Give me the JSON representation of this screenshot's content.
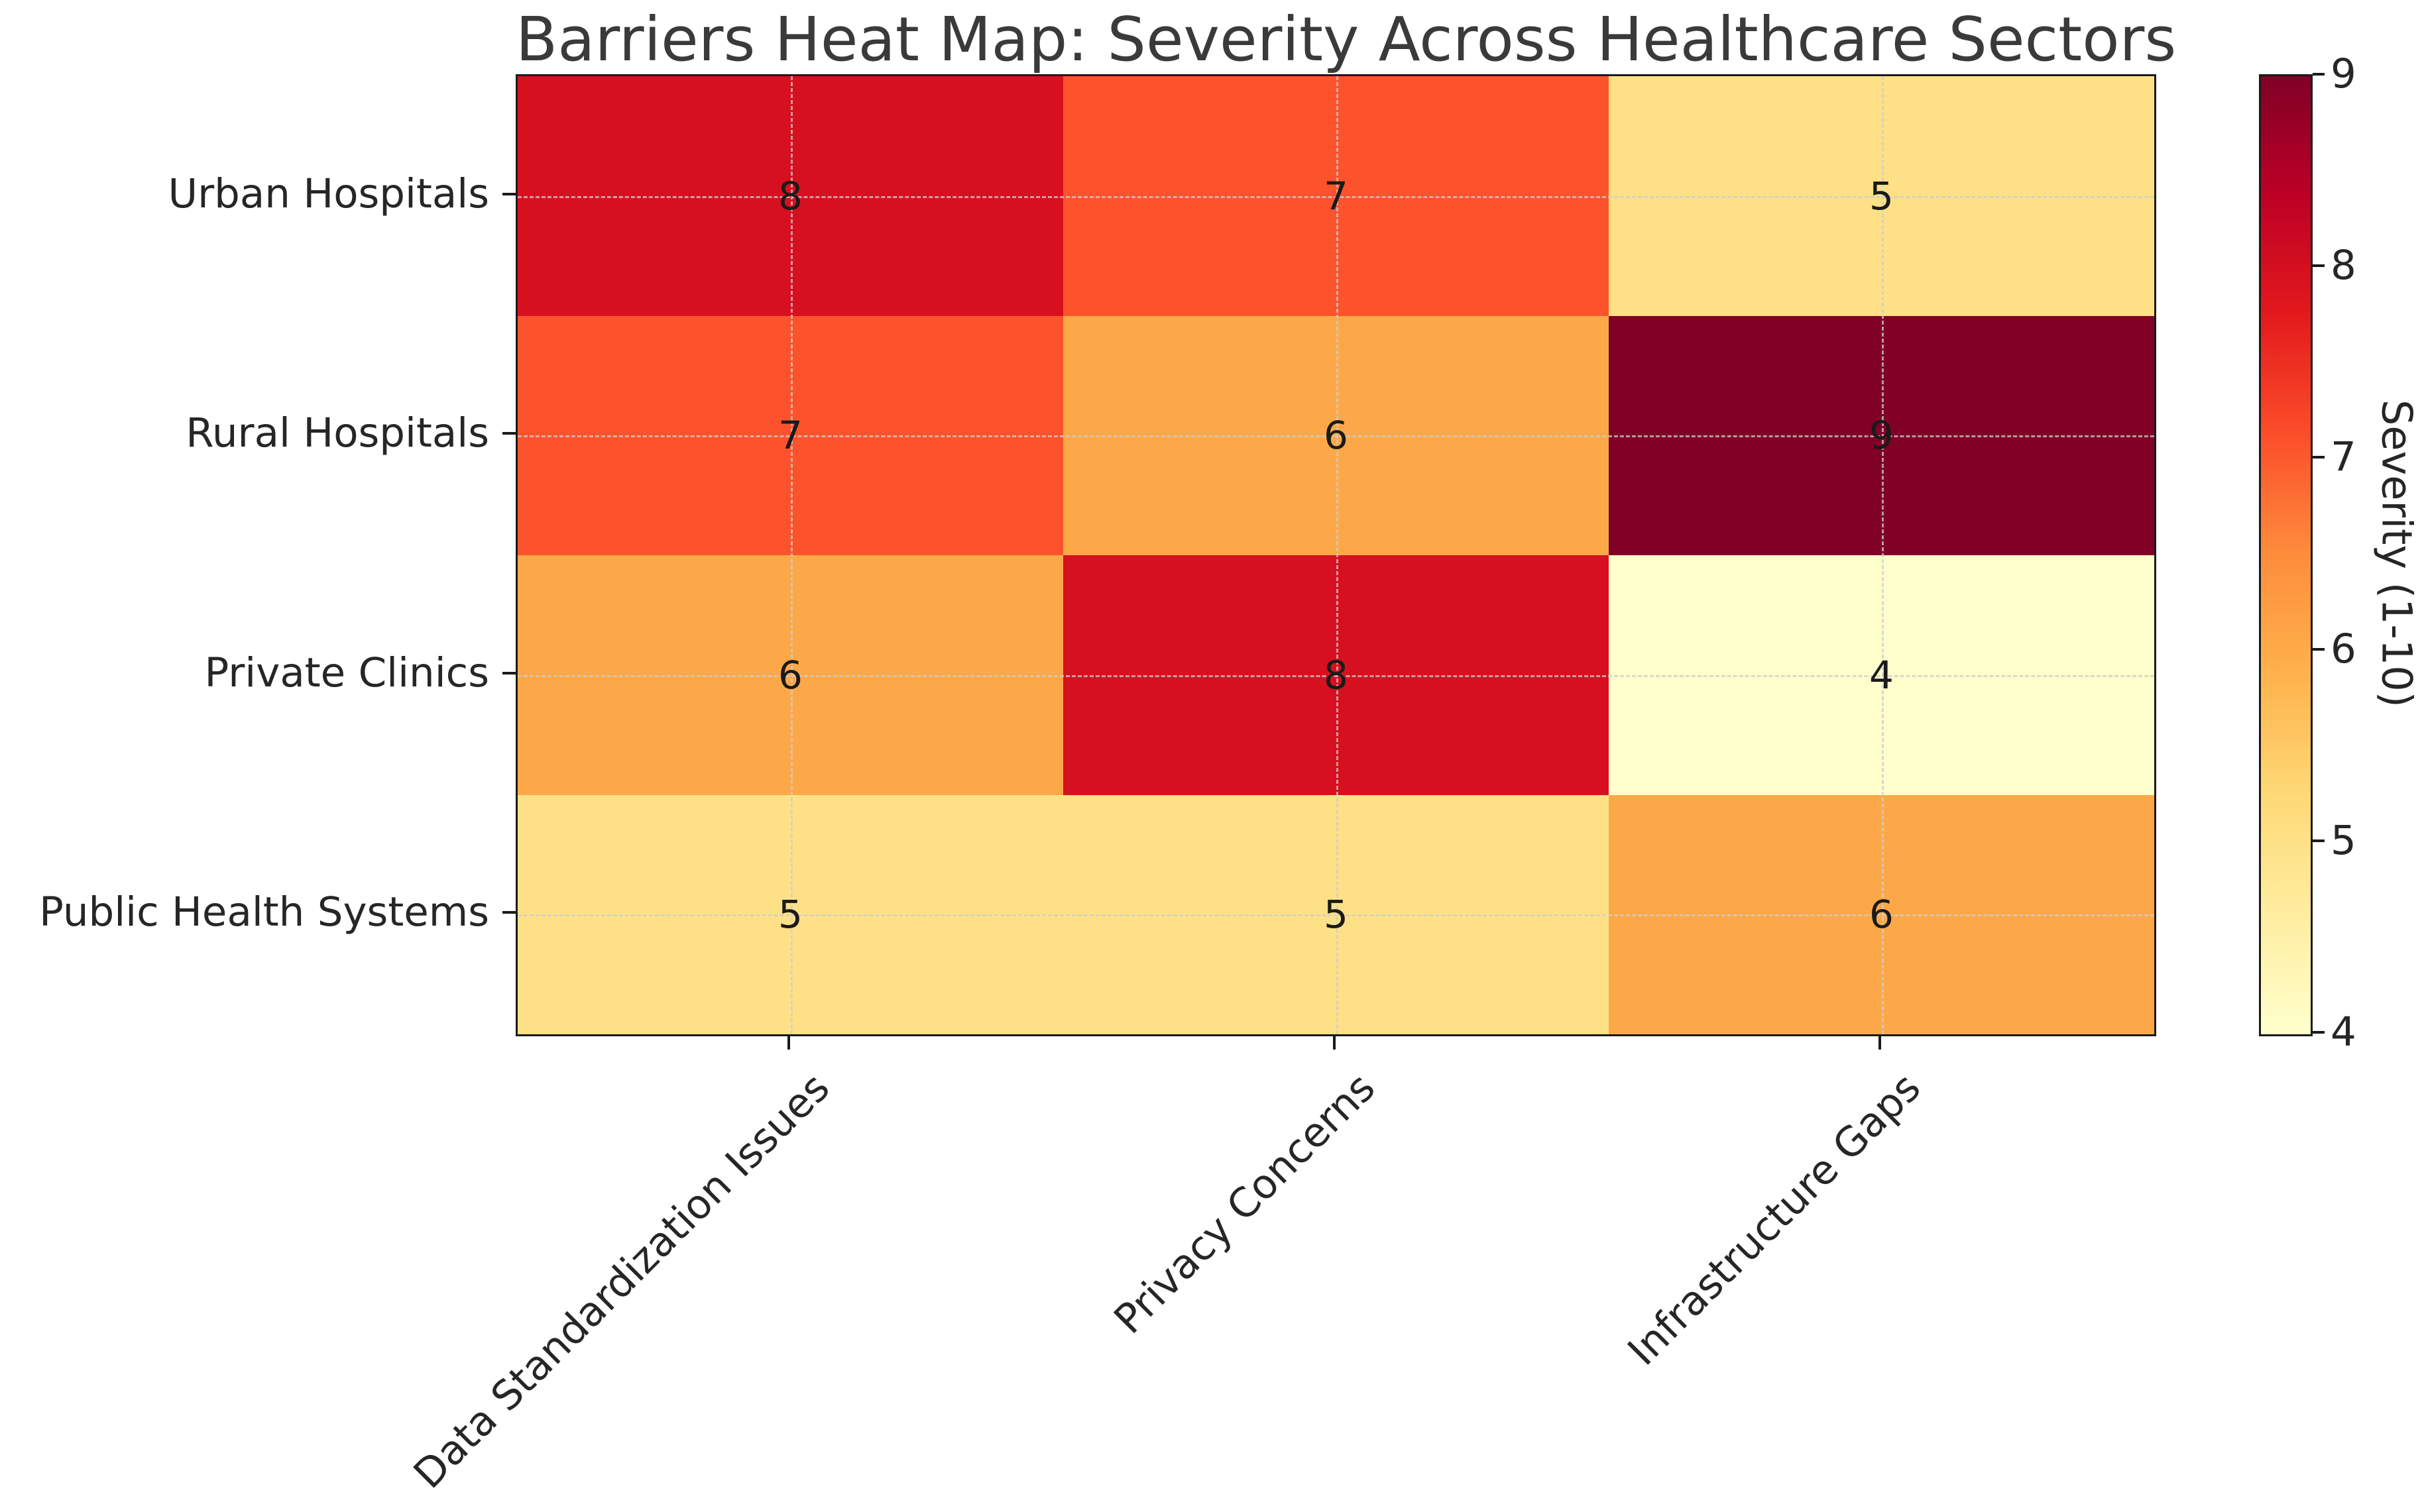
{
  "title": "Barriers Heat Map: Severity Across Healthcare Sectors",
  "chart_data": {
    "type": "heatmap",
    "title": "Barriers Heat Map: Severity Across Healthcare Sectors",
    "rows": [
      "Urban Hospitals",
      "Rural Hospitals",
      "Private Clinics",
      "Public Health Systems"
    ],
    "columns": [
      "Data Standardization Issues",
      "Privacy Concerns",
      "Infrastructure Gaps"
    ],
    "values": [
      [
        8,
        7,
        5
      ],
      [
        7,
        6,
        9
      ],
      [
        6,
        8,
        4
      ],
      [
        5,
        5,
        6
      ]
    ],
    "annotations_shown": true,
    "grid": "dashed lines through cell centers",
    "colormap": "YlOrRd",
    "palette": {
      "4": "#ffffcc",
      "5": "#fee187",
      "6": "#fda848",
      "7": "#fc532c",
      "8": "#d6101f",
      "9": "#800026"
    },
    "colorbar": {
      "label": "Severity (1-10)",
      "vmin": 4,
      "vmax": 9,
      "ticks": [
        9,
        8,
        7,
        6,
        5,
        4
      ],
      "gradient_stops": [
        {
          "pos": 0,
          "color": "#800026"
        },
        {
          "pos": 12.5,
          "color": "#bd0026"
        },
        {
          "pos": 25,
          "color": "#e31a1c"
        },
        {
          "pos": 37.5,
          "color": "#fc4e2a"
        },
        {
          "pos": 50,
          "color": "#fd8d3c"
        },
        {
          "pos": 62.5,
          "color": "#feb24c"
        },
        {
          "pos": 75,
          "color": "#fed976"
        },
        {
          "pos": 87.5,
          "color": "#ffeda0"
        },
        {
          "pos": 100,
          "color": "#ffffcc"
        }
      ]
    }
  },
  "colors": {
    "background": "#ffffff",
    "title_text": "#3a3a3a",
    "tick_label_text": "#262626",
    "annotation_text": "#1a1a1a",
    "spine": "#1a1a1a",
    "gridline": "rgba(204,204,204,0.75)"
  }
}
